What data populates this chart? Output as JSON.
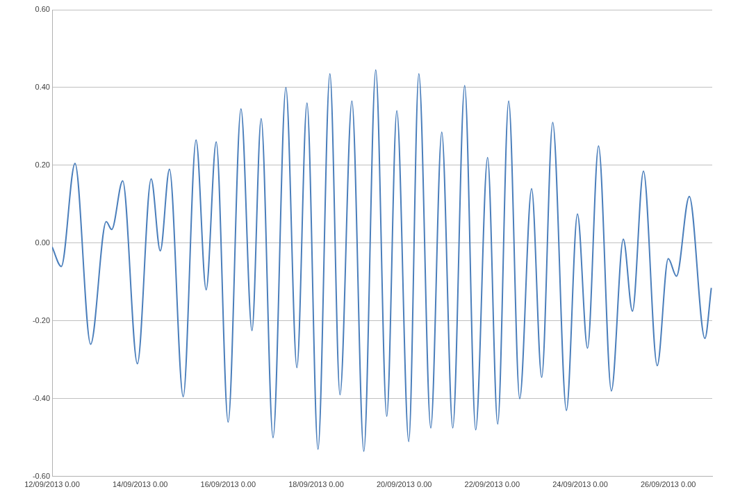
{
  "chart_data": {
    "type": "line",
    "x": [
      "2013-09-12T00:00",
      "2013-09-12T05:00",
      "2013-09-12T12:30",
      "2013-09-12T21:00",
      "2013-09-13T05:30",
      "2013-09-13T08:30",
      "2013-09-13T14:30",
      "2013-09-13T22:30",
      "2013-09-14T06:00",
      "2013-09-14T11:00",
      "2013-09-14T16:00",
      "2013-09-14T23:30",
      "2013-09-15T06:30",
      "2013-09-15T12:00",
      "2013-09-15T17:30",
      "2013-09-16T00:00",
      "2013-09-16T07:00",
      "2013-09-16T13:00",
      "2013-09-16T18:00",
      "2013-09-17T00:30",
      "2013-09-17T07:30",
      "2013-09-17T13:30",
      "2013-09-17T19:00",
      "2013-09-18T01:00",
      "2013-09-18T07:30",
      "2013-09-18T13:00",
      "2013-09-18T19:30",
      "2013-09-19T02:00",
      "2013-09-19T08:30",
      "2013-09-19T14:30",
      "2013-09-19T20:00",
      "2013-09-20T02:30",
      "2013-09-20T08:00",
      "2013-09-20T14:30",
      "2013-09-20T20:30",
      "2013-09-21T02:30",
      "2013-09-21T09:00",
      "2013-09-21T15:00",
      "2013-09-21T21:30",
      "2013-09-22T03:00",
      "2013-09-22T09:00",
      "2013-09-22T15:00",
      "2013-09-22T21:30",
      "2013-09-23T03:00",
      "2013-09-23T09:00",
      "2013-09-23T16:30",
      "2013-09-23T22:30",
      "2013-09-24T04:00",
      "2013-09-24T10:00",
      "2013-09-24T17:00",
      "2013-09-24T23:30",
      "2013-09-25T04:30",
      "2013-09-25T10:30",
      "2013-09-25T18:00",
      "2013-09-26T00:00",
      "2013-09-26T04:30",
      "2013-09-26T11:30",
      "2013-09-26T20:00",
      "2013-09-26T23:30"
    ],
    "series": [
      {
        "color": "#4a7ebb",
        "values": [
          -0.01,
          -0.06,
          0.205,
          -0.26,
          0.055,
          0.035,
          0.16,
          -0.31,
          0.165,
          -0.02,
          0.19,
          -0.395,
          0.265,
          -0.12,
          0.26,
          -0.46,
          0.345,
          -0.225,
          0.32,
          -0.5,
          0.4,
          -0.32,
          0.36,
          -0.53,
          0.435,
          -0.39,
          0.365,
          -0.535,
          0.445,
          -0.445,
          0.34,
          -0.51,
          0.435,
          -0.475,
          0.285,
          -0.475,
          0.405,
          -0.48,
          0.22,
          -0.465,
          0.365,
          -0.4,
          0.14,
          -0.345,
          0.31,
          -0.43,
          0.075,
          -0.27,
          0.25,
          -0.38,
          0.01,
          -0.175,
          0.185,
          -0.315,
          -0.04,
          -0.085,
          0.12,
          -0.245,
          -0.115
        ]
      }
    ],
    "xlim": [
      "2013-09-12T00:00",
      "2013-09-27T00:00"
    ],
    "xticks": [
      {
        "value": "2013-09-12T00:00",
        "label": "12/09/2013 0.00"
      },
      {
        "value": "2013-09-14T00:00",
        "label": "14/09/2013 0.00"
      },
      {
        "value": "2013-09-16T00:00",
        "label": "16/09/2013 0.00"
      },
      {
        "value": "2013-09-18T00:00",
        "label": "18/09/2013 0.00"
      },
      {
        "value": "2013-09-20T00:00",
        "label": "20/09/2013 0.00"
      },
      {
        "value": "2013-09-22T00:00",
        "label": "22/09/2013 0.00"
      },
      {
        "value": "2013-09-24T00:00",
        "label": "24/09/2013 0.00"
      },
      {
        "value": "2013-09-26T00:00",
        "label": "26/09/2013 0.00"
      }
    ],
    "ylim": [
      -0.6,
      0.6
    ],
    "yticks": [
      {
        "value": -0.6,
        "label": "-0.60"
      },
      {
        "value": -0.4,
        "label": "-0.40"
      },
      {
        "value": -0.2,
        "label": "-0.20"
      },
      {
        "value": 0,
        "label": "0.00"
      },
      {
        "value": 0.2,
        "label": "0.20"
      },
      {
        "value": 0.4,
        "label": "0.40"
      },
      {
        "value": 0.6,
        "label": "0.60"
      }
    ],
    "grid": "y",
    "marker": "none",
    "line_style": "solid",
    "legend": false
  }
}
